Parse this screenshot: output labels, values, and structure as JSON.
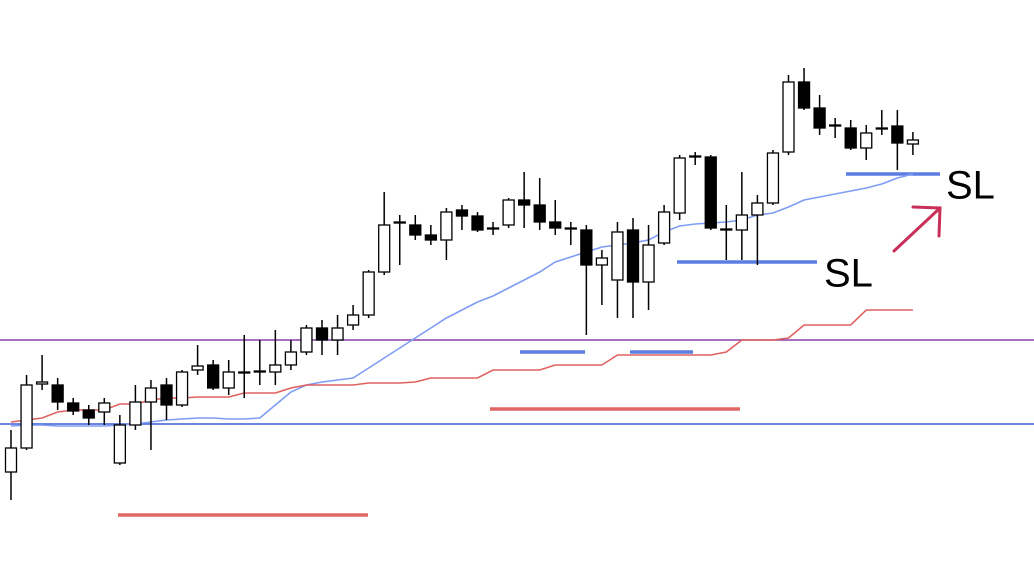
{
  "chart_data": {
    "type": "candlestick",
    "ylim": [
      0,
      588
    ],
    "open": [
      116,
      140,
      204,
      203,
      185,
      178,
      176,
      125,
      163,
      186,
      203,
      183,
      218,
      223,
      200,
      215,
      216,
      216,
      223,
      236,
      260,
      248,
      263,
      273,
      316,
      365,
      363,
      353,
      348,
      378,
      372,
      359,
      363,
      388,
      383,
      366,
      360,
      358,
      323,
      308,
      358,
      306,
      345,
      375,
      431,
      431,
      359,
      358,
      373,
      385,
      436,
      506,
      480,
      462,
      460,
      440,
      459,
      462,
      444
    ],
    "high": [
      158,
      213,
      233,
      210,
      190,
      183,
      190,
      173,
      203,
      208,
      210,
      218,
      243,
      228,
      228,
      253,
      248,
      258,
      248,
      263,
      268,
      273,
      283,
      318,
      396,
      373,
      373,
      363,
      380,
      383,
      376,
      366,
      390,
      416,
      410,
      388,
      366,
      363,
      338,
      366,
      370,
      363,
      383,
      433,
      436,
      433,
      383,
      416,
      393,
      438,
      513,
      520,
      493,
      470,
      468,
      463,
      478,
      478,
      456
    ],
    "low": [
      88,
      138,
      198,
      178,
      173,
      163,
      163,
      123,
      158,
      138,
      168,
      181,
      213,
      198,
      193,
      190,
      203,
      203,
      218,
      233,
      233,
      233,
      258,
      270,
      313,
      323,
      348,
      343,
      328,
      358,
      356,
      353,
      360,
      360,
      358,
      353,
      343,
      253,
      283,
      270,
      270,
      278,
      343,
      368,
      423,
      358,
      328,
      328,
      323,
      383,
      433,
      478,
      453,
      450,
      438,
      428,
      453,
      418,
      433
    ],
    "close": [
      140,
      203,
      206,
      186,
      177,
      170,
      185,
      163,
      186,
      200,
      183,
      216,
      222,
      200,
      216,
      216,
      217,
      223,
      236,
      260,
      248,
      260,
      273,
      316,
      363,
      366,
      353,
      348,
      376,
      372,
      358,
      360,
      388,
      383,
      366,
      360,
      359,
      323,
      330,
      356,
      306,
      343,
      376,
      430,
      432,
      360,
      358,
      373,
      385,
      435,
      506,
      480,
      460,
      463,
      440,
      455,
      460,
      445,
      448
    ],
    "up_color": "#ffffff",
    "down_color": "#000000",
    "series": [
      {
        "color": "#7f9cf5",
        "values": [
          162,
          163,
          163,
          162,
          162,
          162,
          162,
          163,
          164,
          166,
          168,
          169,
          170,
          170,
          169,
          169,
          170,
          183,
          196,
          203,
          206,
          208,
          210,
          220,
          230,
          240,
          250,
          260,
          270,
          278,
          286,
          292,
          300,
          308,
          316,
          326,
          331,
          336,
          341,
          343,
          345,
          348,
          356,
          362,
          364,
          365,
          366,
          368,
          373,
          375,
          381,
          388,
          391,
          394,
          397,
          400,
          404,
          410,
          414
        ]
      },
      {
        "color": "#e06060",
        "values": [
          166,
          168,
          170,
          176,
          178,
          178,
          178,
          184,
          184,
          188,
          190,
          190,
          191,
          191,
          191,
          195,
          195,
          195,
          200,
          203,
          203,
          203,
          203,
          205,
          205,
          205,
          206,
          210,
          210,
          210,
          210,
          218,
          218,
          218,
          218,
          223,
          223,
          223,
          223,
          233,
          233,
          233,
          233,
          233,
          233,
          233,
          236,
          248,
          248,
          248,
          250,
          263,
          263,
          263,
          263,
          278,
          278,
          278,
          278
        ]
      }
    ],
    "levels": [
      {
        "value": 248,
        "color": "#8a3fb0"
      },
      {
        "value": 164,
        "color": "#3a5fcf"
      },
      {
        "value": 73,
        "color": "#e06666"
      },
      {
        "value": 179,
        "color": "#e06666"
      },
      {
        "value": 236,
        "color": "#5b7fe0"
      },
      {
        "value": 236,
        "color": "#5b7fe0"
      },
      {
        "value": 326,
        "color": "#5b7fe0"
      },
      {
        "value": 414,
        "color": "#5b7fe0"
      }
    ],
    "annotations": [
      "SL",
      "SL"
    ]
  }
}
